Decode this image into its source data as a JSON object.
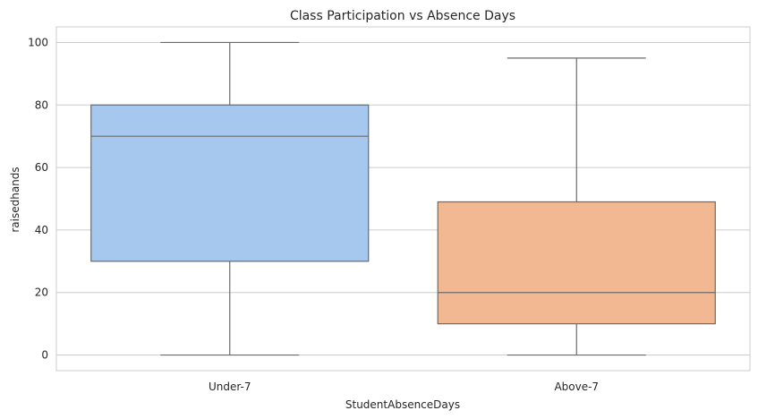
{
  "chart_data": {
    "type": "box",
    "title": "Class Participation vs Absence Days",
    "xlabel": "StudentAbsenceDays",
    "ylabel": "raisedhands",
    "categories": [
      "Under-7",
      "Above-7"
    ],
    "boxes": [
      {
        "category": "Under-7",
        "min": 0,
        "q1": 30,
        "median": 70,
        "q3": 80,
        "max": 100,
        "color": "#a7c8ee"
      },
      {
        "category": "Above-7",
        "min": 0,
        "q1": 10,
        "median": 20,
        "q3": 49,
        "max": 95,
        "color": "#f1b892"
      }
    ],
    "ylim": [
      -5,
      105
    ],
    "yticks": [
      0,
      20,
      40,
      60,
      80,
      100
    ],
    "grid": true,
    "line_color": "#6b6b6b"
  }
}
